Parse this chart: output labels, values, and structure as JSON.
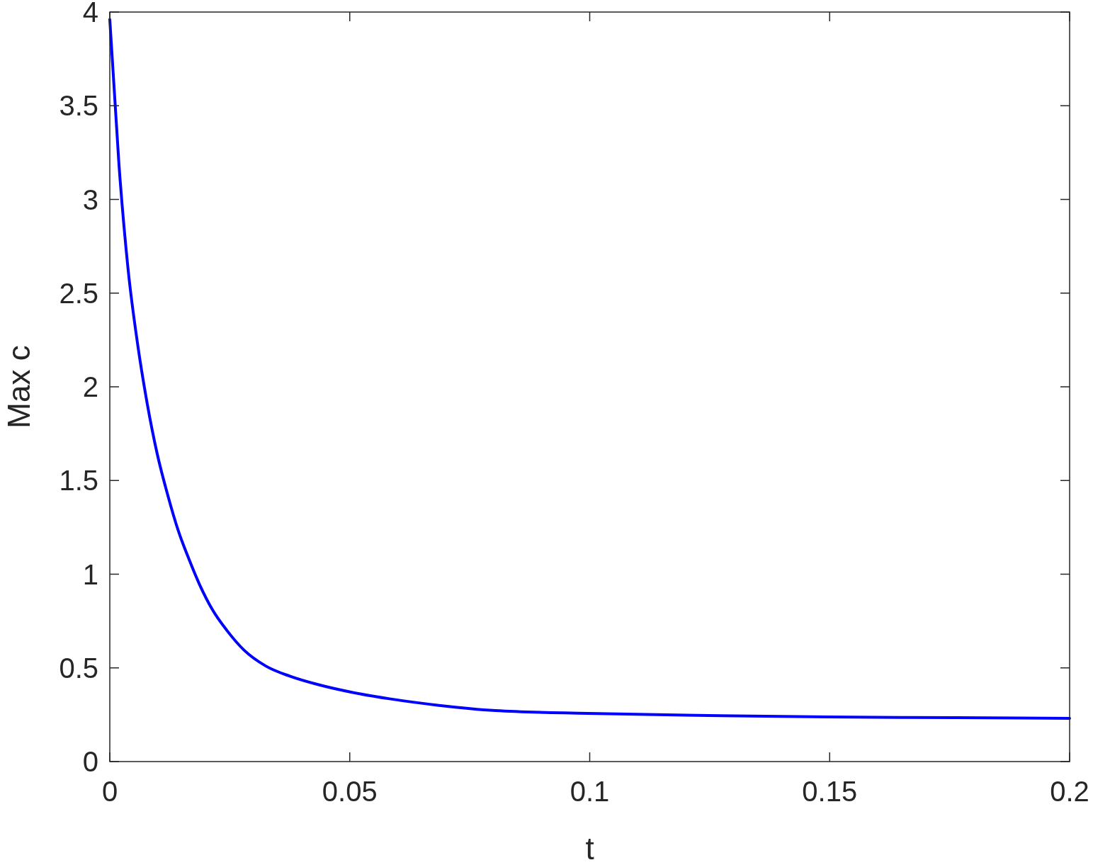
{
  "chart_data": {
    "type": "line",
    "xlabel": "t",
    "ylabel": "Max c",
    "xlim": [
      0,
      0.2
    ],
    "ylim": [
      0,
      4
    ],
    "xticks": [
      0,
      0.05,
      0.1,
      0.15,
      0.2
    ],
    "yticks": [
      0,
      0.5,
      1,
      1.5,
      2,
      2.5,
      3,
      3.5,
      4
    ],
    "grid": false,
    "marker": "none",
    "line_style": "solid",
    "series": [
      {
        "color": "#0000ff",
        "x": [
          0,
          0.0019,
          0.0038,
          0.0059,
          0.0078,
          0.0099,
          0.0121,
          0.0143,
          0.0165,
          0.0187,
          0.0214,
          0.0244,
          0.028,
          0.0325,
          0.0376,
          0.0435,
          0.0494,
          0.0583,
          0.0686,
          0.0804,
          0.0996,
          0.1247,
          0.1498,
          0.1764,
          0.2
        ],
        "values": [
          3.96,
          3.19,
          2.63,
          2.21,
          1.91,
          1.64,
          1.42,
          1.23,
          1.08,
          0.945,
          0.81,
          0.7,
          0.594,
          0.51,
          0.455,
          0.41,
          0.375,
          0.335,
          0.3,
          0.272,
          0.257,
          0.246,
          0.238,
          0.234,
          0.231
        ]
      }
    ]
  }
}
